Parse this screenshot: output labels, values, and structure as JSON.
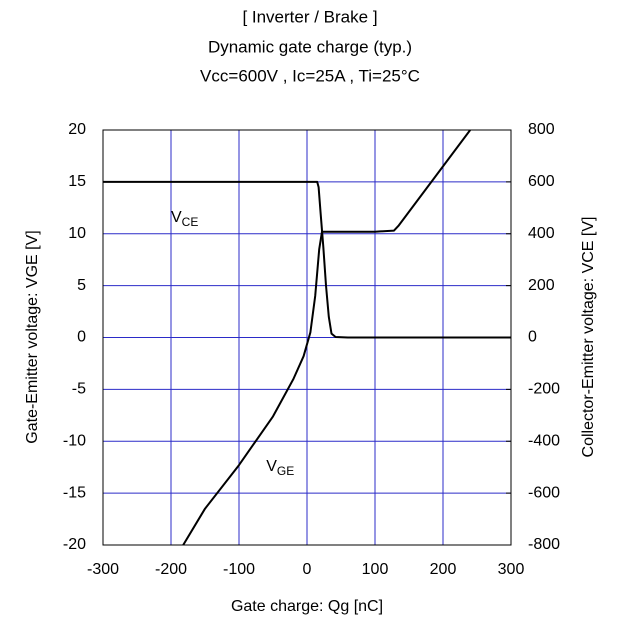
{
  "chart_data": {
    "type": "line",
    "title": "[ Inverter / Brake ]",
    "subtitle": "Dynamic gate charge  (typ.)",
    "conditions": "Vcc=600V , Ic=25A , Ti=25°C",
    "xlabel": "Gate charge: Qg [nC]",
    "ylabel": "Gate-Emitter voltage:  VGE [V]",
    "y2label": "Collector-Emitter voltage: VCE [V]",
    "xlim": [
      -300,
      300
    ],
    "xticks": [
      -300,
      -200,
      -100,
      0,
      100,
      200,
      300
    ],
    "ylim": [
      -20,
      20
    ],
    "yticks": [
      -20,
      -15,
      -10,
      -5,
      0,
      5,
      10,
      15,
      20
    ],
    "y2lim": [
      -800,
      800
    ],
    "y2ticks": [
      -800,
      -600,
      -400,
      -200,
      0,
      200,
      400,
      600,
      800
    ],
    "grid": true,
    "grid_color": "#2b2bc8",
    "series": [
      {
        "name": "VGE",
        "color": "#000000",
        "axis": "y",
        "x": [
          -182,
          -150,
          -100,
          -50,
          -20,
          -5,
          5,
          12,
          18,
          22,
          30,
          100,
          128,
          135,
          240
        ],
        "values": [
          -20,
          -16.5,
          -12.3,
          -7.6,
          -4,
          -1.8,
          0.5,
          4,
          8.5,
          10.2,
          10.2,
          10.2,
          10.3,
          10.8,
          20
        ]
      },
      {
        "name": "VCE",
        "color": "#000000",
        "axis": "y2",
        "x": [
          -300,
          15,
          17,
          20,
          24,
          28,
          32,
          36,
          42,
          60,
          300
        ],
        "values": [
          600,
          600,
          580,
          480,
          350,
          200,
          80,
          15,
          2,
          0,
          0
        ]
      }
    ],
    "annotations": [
      {
        "text": "V",
        "sub": "CE",
        "x": -200,
        "y": 11.5
      },
      {
        "text": "V",
        "sub": "GE",
        "x": -60,
        "y": -12.5
      }
    ]
  }
}
